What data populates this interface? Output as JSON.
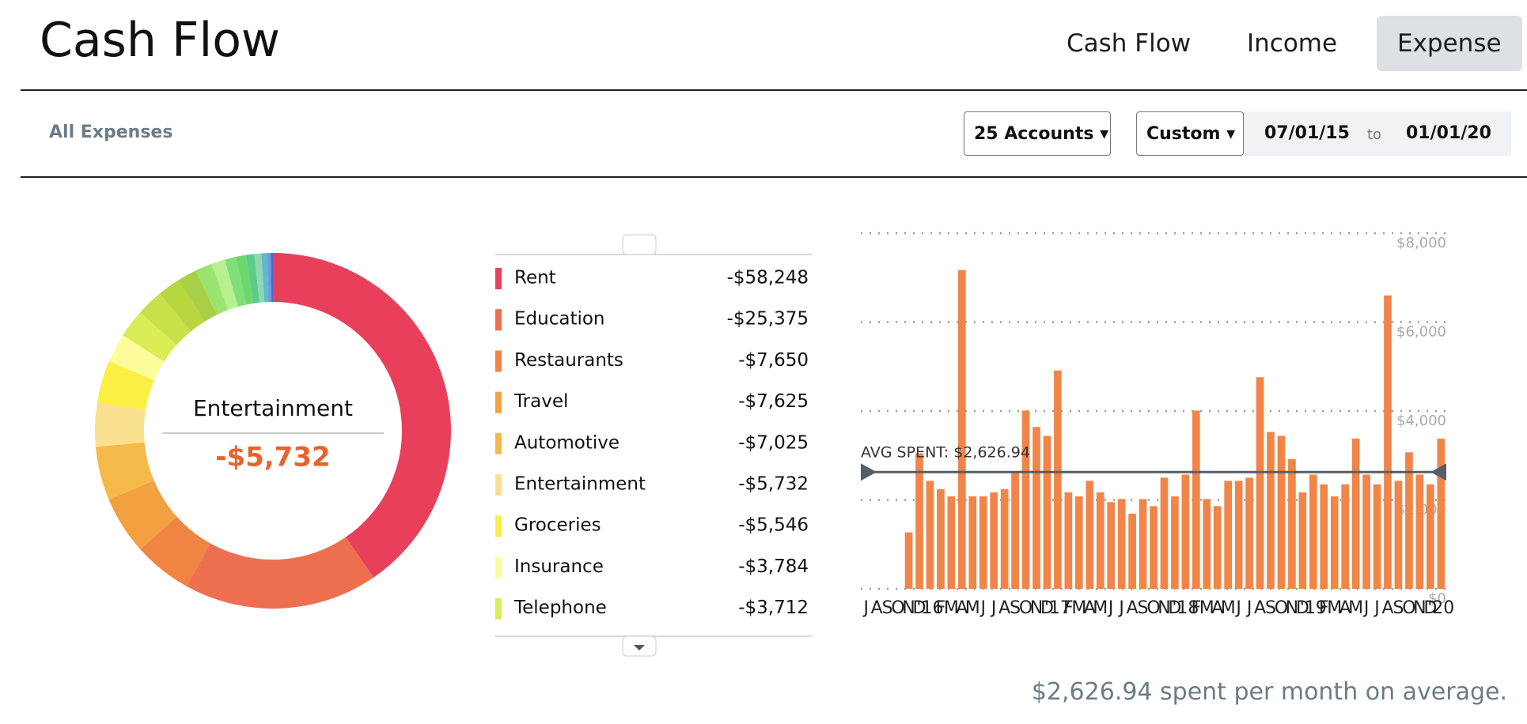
{
  "header": {
    "title": "Cash Flow",
    "tabs": [
      "Cash Flow",
      "Income",
      "Expense"
    ],
    "active_tab": 2
  },
  "filters": {
    "label": "All Expenses",
    "accounts": "25 Accounts",
    "range": "Custom",
    "from": "07/01/15",
    "to_label": "to",
    "to": "01/01/20"
  },
  "chart_data": [
    {
      "type": "donut",
      "selected": 5,
      "categories": [
        "Rent",
        "Education",
        "Restaurants",
        "Travel",
        "Automotive",
        "Entertainment",
        "Groceries",
        "Insurance",
        "Telephone",
        null,
        null,
        null,
        null,
        null,
        null,
        null,
        null,
        null,
        null,
        null,
        null
      ],
      "values": [
        -58248,
        -25375,
        -7650,
        -7625,
        -7025,
        -5732,
        -5546,
        -3784,
        -3712,
        -3500,
        -3000,
        -2500,
        -2200,
        -1800,
        -1500,
        -1300,
        -1100,
        -900,
        -700,
        -500,
        -300
      ],
      "value_labels": [
        "-$58,248",
        "-$25,375",
        "-$7,650",
        "-$7,625",
        "-$7,025",
        "-$5,732",
        "-$5,546",
        "-$3,784",
        "-$3,712",
        null,
        null,
        null,
        null,
        null,
        null,
        null,
        null,
        null,
        null,
        null,
        null
      ],
      "colors": [
        "#e8405a",
        "#ee6f4f",
        "#f08543",
        "#f2a040",
        "#f5b94a",
        "#f8e08e",
        "#fbee45",
        "#fdfc9a",
        "#dcec55",
        "#c9e04a",
        "#b7d63f",
        "#a8cf45",
        "#9be36f",
        "#b8f090",
        "#7fe07a",
        "#6ad86c",
        "#5ccc88",
        "#8fd8b0",
        "#5fb9d0",
        "#6d9be0",
        "#4a6fd0"
      ]
    },
    {
      "type": "bar",
      "color": "#f0854a",
      "grid": true,
      "categories": [
        "J",
        "A",
        "S",
        "O",
        "N",
        "D",
        "'16",
        "F",
        "M",
        "A",
        "M",
        "J",
        "J",
        "A",
        "S",
        "O",
        "N",
        "D",
        "'17",
        "F",
        "M",
        "A",
        "M",
        "J",
        "J",
        "A",
        "S",
        "O",
        "N",
        "D",
        "'18",
        "F",
        "M",
        "A",
        "M",
        "J",
        "J",
        "A",
        "S",
        "O",
        "N",
        "D",
        "'19",
        "F",
        "M",
        "A",
        "M",
        "J",
        "J",
        "A",
        "S",
        "O",
        "N",
        "D",
        "'20"
      ],
      "values": [
        0,
        0,
        0,
        0,
        1270,
        3050,
        2430,
        2240,
        2080,
        7170,
        2080,
        2080,
        2170,
        2240,
        2630,
        4010,
        3640,
        3440,
        4910,
        2170,
        2080,
        2430,
        2170,
        1950,
        2020,
        1690,
        2020,
        1860,
        2500,
        2080,
        2570,
        4010,
        2020,
        1860,
        2430,
        2430,
        2500,
        4760,
        3530,
        3440,
        2920,
        2170,
        2570,
        2350,
        2080,
        2350,
        3380,
        2570,
        2350,
        6600,
        2430,
        3070,
        2570,
        2350,
        3380
      ],
      "ylim": [
        0,
        8000
      ],
      "yticks": [
        {
          "value": 0,
          "label": "$0"
        },
        {
          "value": 2000,
          "label": "$2,000"
        },
        {
          "value": 4000,
          "label": "$4,000"
        },
        {
          "value": 6000,
          "label": "$6,000"
        },
        {
          "value": 8000,
          "label": "$8,000"
        }
      ],
      "average": {
        "value": 2626.94,
        "label": "AVG SPENT: $2,626.94"
      }
    }
  ],
  "footer": "$2,626.94 spent per month on average."
}
